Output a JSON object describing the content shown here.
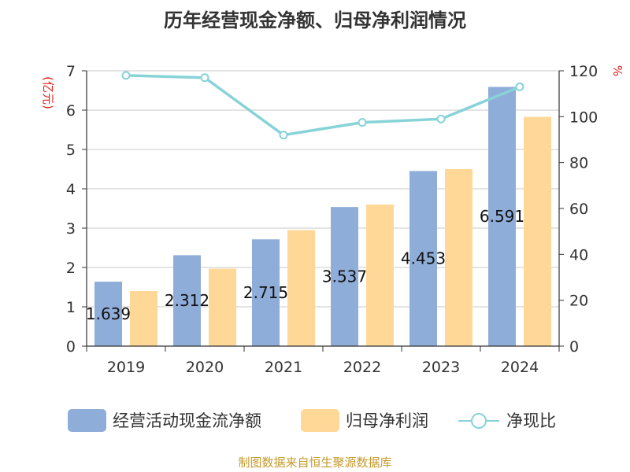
{
  "chart_data": {
    "type": "bar",
    "title": "历年经营现金净额、归母净利润情况",
    "categories": [
      "2019",
      "2020",
      "2021",
      "2022",
      "2023",
      "2024"
    ],
    "series": [
      {
        "name": "经营活动现金流净额",
        "kind": "bar",
        "axis": "left",
        "values": [
          1.639,
          2.312,
          2.715,
          3.537,
          4.453,
          6.591
        ],
        "color": "#8fadd9"
      },
      {
        "name": "归母净利润",
        "kind": "bar",
        "axis": "left",
        "values": [
          1.4,
          1.97,
          2.95,
          3.6,
          4.5,
          5.83
        ],
        "color": "#ffd898"
      },
      {
        "name": "净现比",
        "kind": "line",
        "axis": "right",
        "values": [
          118,
          117,
          92,
          97.5,
          99,
          113
        ],
        "color": "#87d3d8"
      }
    ],
    "data_labels": [
      "1.639",
      "2.312",
      "2.715",
      "3.537",
      "4.453",
      "6.591"
    ],
    "yleft": {
      "unit": "(亿元)",
      "ticks": [
        "0",
        "1",
        "2",
        "3",
        "4",
        "5",
        "6",
        "7"
      ],
      "lim": [
        0,
        7
      ]
    },
    "yright": {
      "unit": "%",
      "ticks": [
        "0",
        "20",
        "40",
        "60",
        "80",
        "100",
        "120"
      ],
      "lim": [
        0,
        120
      ]
    },
    "grid": true,
    "legend_position": "bottom"
  },
  "source": "制图数据来自恒生聚源数据库"
}
